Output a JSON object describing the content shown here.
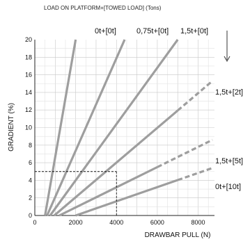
{
  "chart_data": {
    "type": "line",
    "header_label": "LOAD ON PLATFORM+[TOWED LOAD]  (Tons)",
    "xlabel": "DRAWBAR PULL (N)",
    "ylabel": "GRADIENT  (%)",
    "xlim": [
      0,
      8800
    ],
    "ylim": [
      0,
      20
    ],
    "x_ticks": [
      0,
      2000,
      4000,
      6000,
      8000
    ],
    "y_ticks": [
      0,
      2,
      4,
      6,
      8,
      10,
      12,
      14,
      16,
      18,
      20
    ],
    "grid": true,
    "line_color": "#9e9e9e",
    "series": [
      {
        "name": "0t+[0t]",
        "points": [
          [
            500,
            0
          ],
          [
            2000,
            20
          ]
        ],
        "dashed_from_x": null
      },
      {
        "name": "0,75t+[0t]",
        "points": [
          [
            600,
            0
          ],
          [
            4400,
            20
          ]
        ],
        "dashed_from_x": null
      },
      {
        "name": "1,5t+[0t]",
        "points": [
          [
            750,
            0
          ],
          [
            7000,
            20
          ]
        ],
        "dashed_from_x": null
      },
      {
        "name": "1,5t+[2t]",
        "points": [
          [
            950,
            0
          ],
          [
            8700,
            15.3
          ]
        ],
        "dashed_from_x": 7000
      },
      {
        "name": "1,5t+[5t]",
        "points": [
          [
            1200,
            0
          ],
          [
            8700,
            8.6
          ]
        ],
        "dashed_from_x": 6000
      },
      {
        "name": "0t+[10t]",
        "points": [
          [
            2000,
            0
          ],
          [
            8700,
            5.4
          ]
        ],
        "dashed_from_x": 7000
      }
    ],
    "reference": {
      "x": 4000,
      "y": 5
    }
  }
}
